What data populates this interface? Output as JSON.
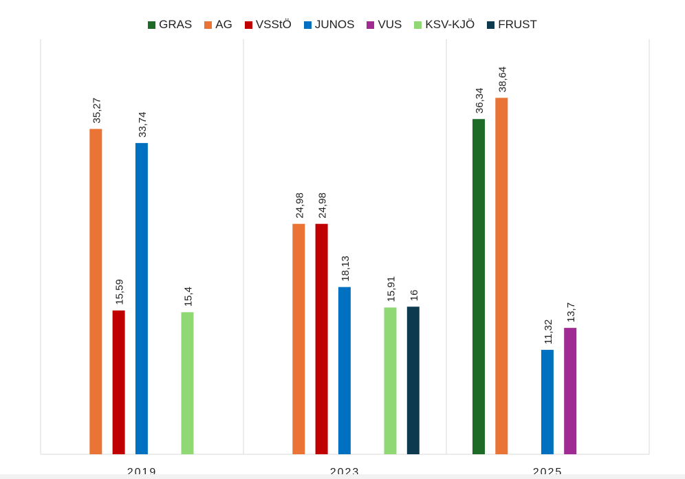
{
  "chart_data": {
    "type": "bar",
    "title": "",
    "xlabel": "",
    "ylabel": "",
    "ylim": [
      0,
      45
    ],
    "grid": false,
    "legend_position": "top",
    "categories": [
      "2019",
      "2023",
      "2025"
    ],
    "series": [
      {
        "name": "GRAS",
        "color": "#1e6b27",
        "values": [
          null,
          null,
          36.34
        ],
        "labels": [
          "",
          "",
          "36,34"
        ]
      },
      {
        "name": "AG",
        "color": "#ea7435",
        "values": [
          35.27,
          24.98,
          38.64
        ],
        "labels": [
          "35,27",
          "24,98",
          "38,64"
        ]
      },
      {
        "name": "VSStÖ",
        "color": "#c00000",
        "values": [
          15.59,
          24.98,
          null
        ],
        "labels": [
          "15,59",
          "24,98",
          ""
        ]
      },
      {
        "name": "JUNOS",
        "color": "#0070c0",
        "values": [
          33.74,
          18.13,
          11.32
        ],
        "labels": [
          "33,74",
          "18,13",
          "11,32"
        ]
      },
      {
        "name": "VUS",
        "color": "#a02b93",
        "values": [
          null,
          null,
          13.7
        ],
        "labels": [
          "",
          "",
          "13,7"
        ]
      },
      {
        "name": "KSV-KJÖ",
        "color": "#8fd873",
        "values": [
          15.4,
          15.91,
          null
        ],
        "labels": [
          "15,4",
          "15,91",
          ""
        ]
      },
      {
        "name": "FRUST",
        "color": "#0e3a4f",
        "values": [
          null,
          16,
          null
        ],
        "labels": [
          "",
          "16",
          ""
        ]
      }
    ]
  }
}
